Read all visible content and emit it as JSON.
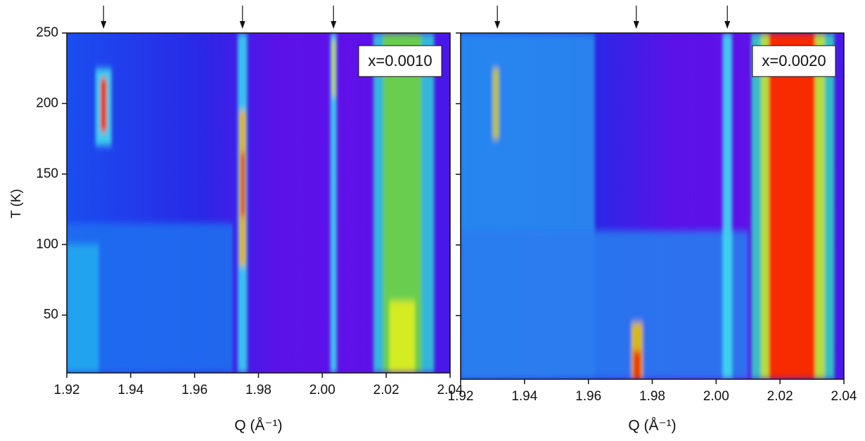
{
  "chart_data": {
    "type": "heatmap",
    "x_label": "Q (Å⁻¹)",
    "y_label": "T (K)",
    "xticks": [
      1.92,
      1.94,
      1.96,
      1.98,
      {
        "value": 2,
        "label": "2.00"
      },
      2.02,
      2.04
    ],
    "yticks": [
      50,
      100,
      150,
      200,
      250
    ],
    "arrows": [
      1.9315,
      1.975,
      2.0035
    ],
    "panels": [
      {
        "annotation": "x=0.0010",
        "xlim": [
          1.92,
          2.04
        ],
        "ylim": [
          9,
          250
        ],
        "bands": [
          {
            "q": [
              1.92,
              1.972
            ],
            "t": [
              9,
              115
            ],
            "color": "#1f6ff0"
          },
          {
            "q": [
              1.92,
              1.93
            ],
            "t": [
              9,
              100
            ],
            "color": "#25a8f0"
          },
          {
            "q": [
              1.929,
              1.934
            ],
            "t": [
              170,
              225
            ],
            "color": "#40d8f0"
          },
          {
            "q": [
              1.9305,
              1.9325
            ],
            "t": [
              180,
              218
            ],
            "color": "#ff2a00"
          },
          {
            "q": [
              1.9735,
              1.9765
            ],
            "t": [
              9,
              250
            ],
            "color": "#38d0f0"
          },
          {
            "q": [
              1.974,
              1.976
            ],
            "t": [
              85,
              195
            ],
            "color": "#f0b000"
          },
          {
            "q": [
              1.9745,
              1.9758
            ],
            "t": [
              120,
              165
            ],
            "color": "#e83000"
          },
          {
            "q": [
              2.0025,
              2.0045
            ],
            "t": [
              9,
              250
            ],
            "color": "#38d8f0"
          },
          {
            "q": [
              2.003,
              2.0042
            ],
            "t": [
              205,
              245
            ],
            "color": "#c8e040"
          },
          {
            "q": [
              2.016,
              2.035
            ],
            "t": [
              9,
              250
            ],
            "color": "#30c8d8"
          },
          {
            "q": [
              2.019,
              2.031
            ],
            "t": [
              9,
              250
            ],
            "color": "#6fd040"
          },
          {
            "q": [
              2.021,
              2.029
            ],
            "t": [
              9,
              60
            ],
            "color": "#e0f020"
          }
        ]
      },
      {
        "annotation": "x=0.0020",
        "xlim": [
          1.92,
          2.04
        ],
        "ylim": [
          5,
          250
        ],
        "bands": [
          {
            "q": [
              1.92,
              1.962
            ],
            "t": [
              5,
              250
            ],
            "color": "#2a8cf0"
          },
          {
            "q": [
              1.92,
              2.01
            ],
            "t": [
              5,
              110
            ],
            "color": "#2a7cf0"
          },
          {
            "q": [
              1.93,
              1.932
            ],
            "t": [
              175,
              225
            ],
            "color": "#c8c830"
          },
          {
            "q": [
              1.9735,
              1.977
            ],
            "t": [
              5,
              45
            ],
            "color": "#e8c000"
          },
          {
            "q": [
              1.974,
              1.9765
            ],
            "t": [
              5,
              25
            ],
            "color": "#f03000"
          },
          {
            "q": [
              2.002,
              2.005
            ],
            "t": [
              5,
              250
            ],
            "color": "#40d8f0"
          },
          {
            "q": [
              2.011,
              2.037
            ],
            "t": [
              5,
              250
            ],
            "color": "#30d0c0"
          },
          {
            "q": [
              2.014,
              2.034
            ],
            "t": [
              5,
              250
            ],
            "color": "#c0e030"
          },
          {
            "q": [
              2.0165,
              2.031
            ],
            "t": [
              5,
              250
            ],
            "color": "#ff1800"
          }
        ]
      }
    ]
  }
}
